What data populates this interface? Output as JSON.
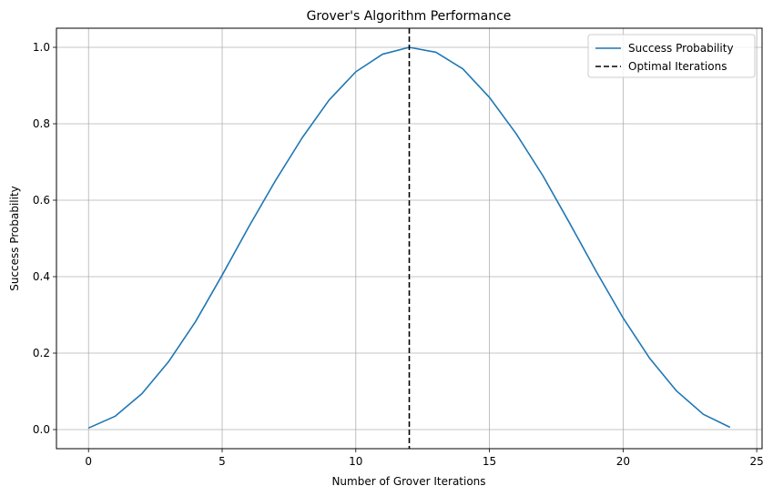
{
  "chart_data": {
    "type": "line",
    "title": "Grover's Algorithm Performance",
    "xlabel": "Number of Grover Iterations",
    "ylabel": "Success Probability",
    "xlim": [
      -1.2,
      25.2
    ],
    "ylim": [
      -0.05,
      1.05
    ],
    "xticks": [
      0,
      5,
      10,
      15,
      20,
      25
    ],
    "yticks": [
      0.0,
      0.2,
      0.4,
      0.6,
      0.8,
      1.0
    ],
    "xtick_labels": [
      "0",
      "5",
      "10",
      "15",
      "20",
      "25"
    ],
    "ytick_labels": [
      "0.0",
      "0.2",
      "0.4",
      "0.6",
      "0.8",
      "1.0"
    ],
    "grid": true,
    "legend_position": "top-right",
    "series": [
      {
        "name": "Success Probability",
        "color": "#1f77b4",
        "style": "solid",
        "x": [
          0,
          1,
          2,
          3,
          4,
          5,
          6,
          7,
          8,
          9,
          10,
          11,
          12,
          13,
          14,
          15,
          16,
          17,
          18,
          19,
          20,
          21,
          22,
          23,
          24
        ],
        "y": [
          0.004,
          0.035,
          0.094,
          0.178,
          0.282,
          0.404,
          0.531,
          0.652,
          0.764,
          0.862,
          0.936,
          0.982,
          1.0,
          0.987,
          0.944,
          0.869,
          0.774,
          0.664,
          0.54,
          0.413,
          0.292,
          0.186,
          0.101,
          0.04,
          0.006
        ]
      }
    ],
    "vlines": [
      {
        "name": "Optimal Iterations",
        "x": 12,
        "color": "#000000",
        "style": "dashed"
      }
    ]
  }
}
